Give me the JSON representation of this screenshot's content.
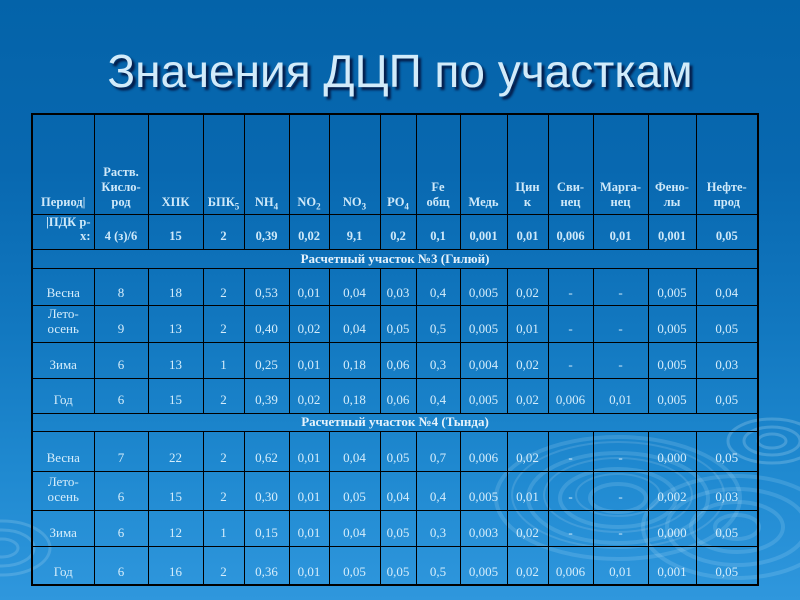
{
  "slide": {
    "title": "Значения ДЦП по участкам",
    "colors": {
      "background_top": "#0463a9",
      "background_bottom": "#2f97dd",
      "title_text": "#d2ebfa",
      "table_text": "#d5edfb",
      "table_border": "#000000"
    }
  },
  "table": {
    "columns": [
      {
        "id": "period",
        "label_lines": [
          "Период|"
        ]
      },
      {
        "id": "dissolved-oxygen",
        "label_lines": [
          "Раств.",
          "Кисло-",
          "род"
        ]
      },
      {
        "id": "cod",
        "label_lines": [
          "ХПК"
        ]
      },
      {
        "id": "bod",
        "label_lines": [
          "БПК"
        ],
        "sub": "5"
      },
      {
        "id": "nh4",
        "label_lines": [
          "NH"
        ],
        "sub": "4"
      },
      {
        "id": "no2",
        "label_lines": [
          "NO"
        ],
        "sub": "2"
      },
      {
        "id": "no3",
        "label_lines": [
          "NO"
        ],
        "sub": "3"
      },
      {
        "id": "po4",
        "label_lines": [
          "PO"
        ],
        "sub": "4"
      },
      {
        "id": "fe-total",
        "label_lines": [
          "Fe",
          "общ"
        ]
      },
      {
        "id": "copper",
        "label_lines": [
          "Медь"
        ]
      },
      {
        "id": "zinc",
        "label_lines": [
          "Цин",
          "к"
        ]
      },
      {
        "id": "lead",
        "label_lines": [
          "Сви-",
          "нец"
        ]
      },
      {
        "id": "manganese",
        "label_lines": [
          "Марга-",
          "нец"
        ]
      },
      {
        "id": "phenols",
        "label_lines": [
          "Фено-",
          "лы"
        ]
      },
      {
        "id": "oil-products",
        "label_lines": [
          "Нефте-",
          "прод"
        ]
      }
    ],
    "pdk_row": {
      "label_lines": [
        "|ПДК р-",
        "х:"
      ],
      "values": [
        "4 (з)/6",
        "15",
        "2",
        "0,39",
        "0,02",
        "9,1",
        "0,2",
        "0,1",
        "0,001",
        "0,01",
        "0,006",
        "0,01",
        "0,001",
        "0,05"
      ]
    },
    "sections": [
      {
        "title": "Расчетный участок №3 (Гилюй)",
        "rows": [
          {
            "id": "spring",
            "label_lines": [
              "Весна"
            ],
            "values": [
              "8",
              "18",
              "2",
              "0,53",
              "0,01",
              "0,04",
              "0,03",
              "0,4",
              "0,005",
              "0,02",
              "-",
              "-",
              "0,005",
              "0,04"
            ]
          },
          {
            "id": "summer-autumn",
            "label_lines": [
              "Лето-",
              "осень"
            ],
            "values": [
              "9",
              "13",
              "2",
              "0,40",
              "0,02",
              "0,04",
              "0,05",
              "0,5",
              "0,005",
              "0,01",
              "-",
              "-",
              "0,005",
              "0,05"
            ]
          },
          {
            "id": "winter",
            "label_lines": [
              "Зима"
            ],
            "values": [
              "6",
              "13",
              "1",
              "0,25",
              "0,01",
              "0,18",
              "0,06",
              "0,3",
              "0,004",
              "0,02",
              "-",
              "-",
              "0,005",
              "0,03"
            ]
          },
          {
            "id": "year",
            "label_lines": [
              "Год"
            ],
            "values": [
              "6",
              "15",
              "2",
              "0,39",
              "0,02",
              "0,18",
              "0,06",
              "0,4",
              "0,005",
              "0,02",
              "0,006",
              "0,01",
              "0,005",
              "0,05"
            ]
          }
        ]
      },
      {
        "title": "Расчетный участок №4 (Тында)",
        "rows": [
          {
            "id": "spring",
            "label_lines": [
              "Весна"
            ],
            "values": [
              "7",
              "22",
              "2",
              "0,62",
              "0,01",
              "0,04",
              "0,05",
              "0,7",
              "0,006",
              "0,02",
              "-",
              "-",
              "0,000",
              "0,05"
            ]
          },
          {
            "id": "summer-autumn",
            "label_lines": [
              "Лето-",
              "осень"
            ],
            "values": [
              "6",
              "15",
              "2",
              "0,30",
              "0,01",
              "0,05",
              "0,04",
              "0,4",
              "0,005",
              "0,01",
              "-",
              "-",
              "0,002",
              "0,03"
            ]
          },
          {
            "id": "winter",
            "label_lines": [
              "Зима"
            ],
            "values": [
              "6",
              "12",
              "1",
              "0,15",
              "0,01",
              "0,04",
              "0,05",
              "0,3",
              "0,003",
              "0,02",
              "-",
              "-",
              "0,000",
              "0,05"
            ]
          },
          {
            "id": "year",
            "label_lines": [
              "Год"
            ],
            "values": [
              "6",
              "16",
              "2",
              "0,36",
              "0,01",
              "0,05",
              "0,05",
              "0,5",
              "0,005",
              "0,02",
              "0,006",
              "0,01",
              "0,001",
              "0,05"
            ]
          }
        ]
      }
    ]
  }
}
